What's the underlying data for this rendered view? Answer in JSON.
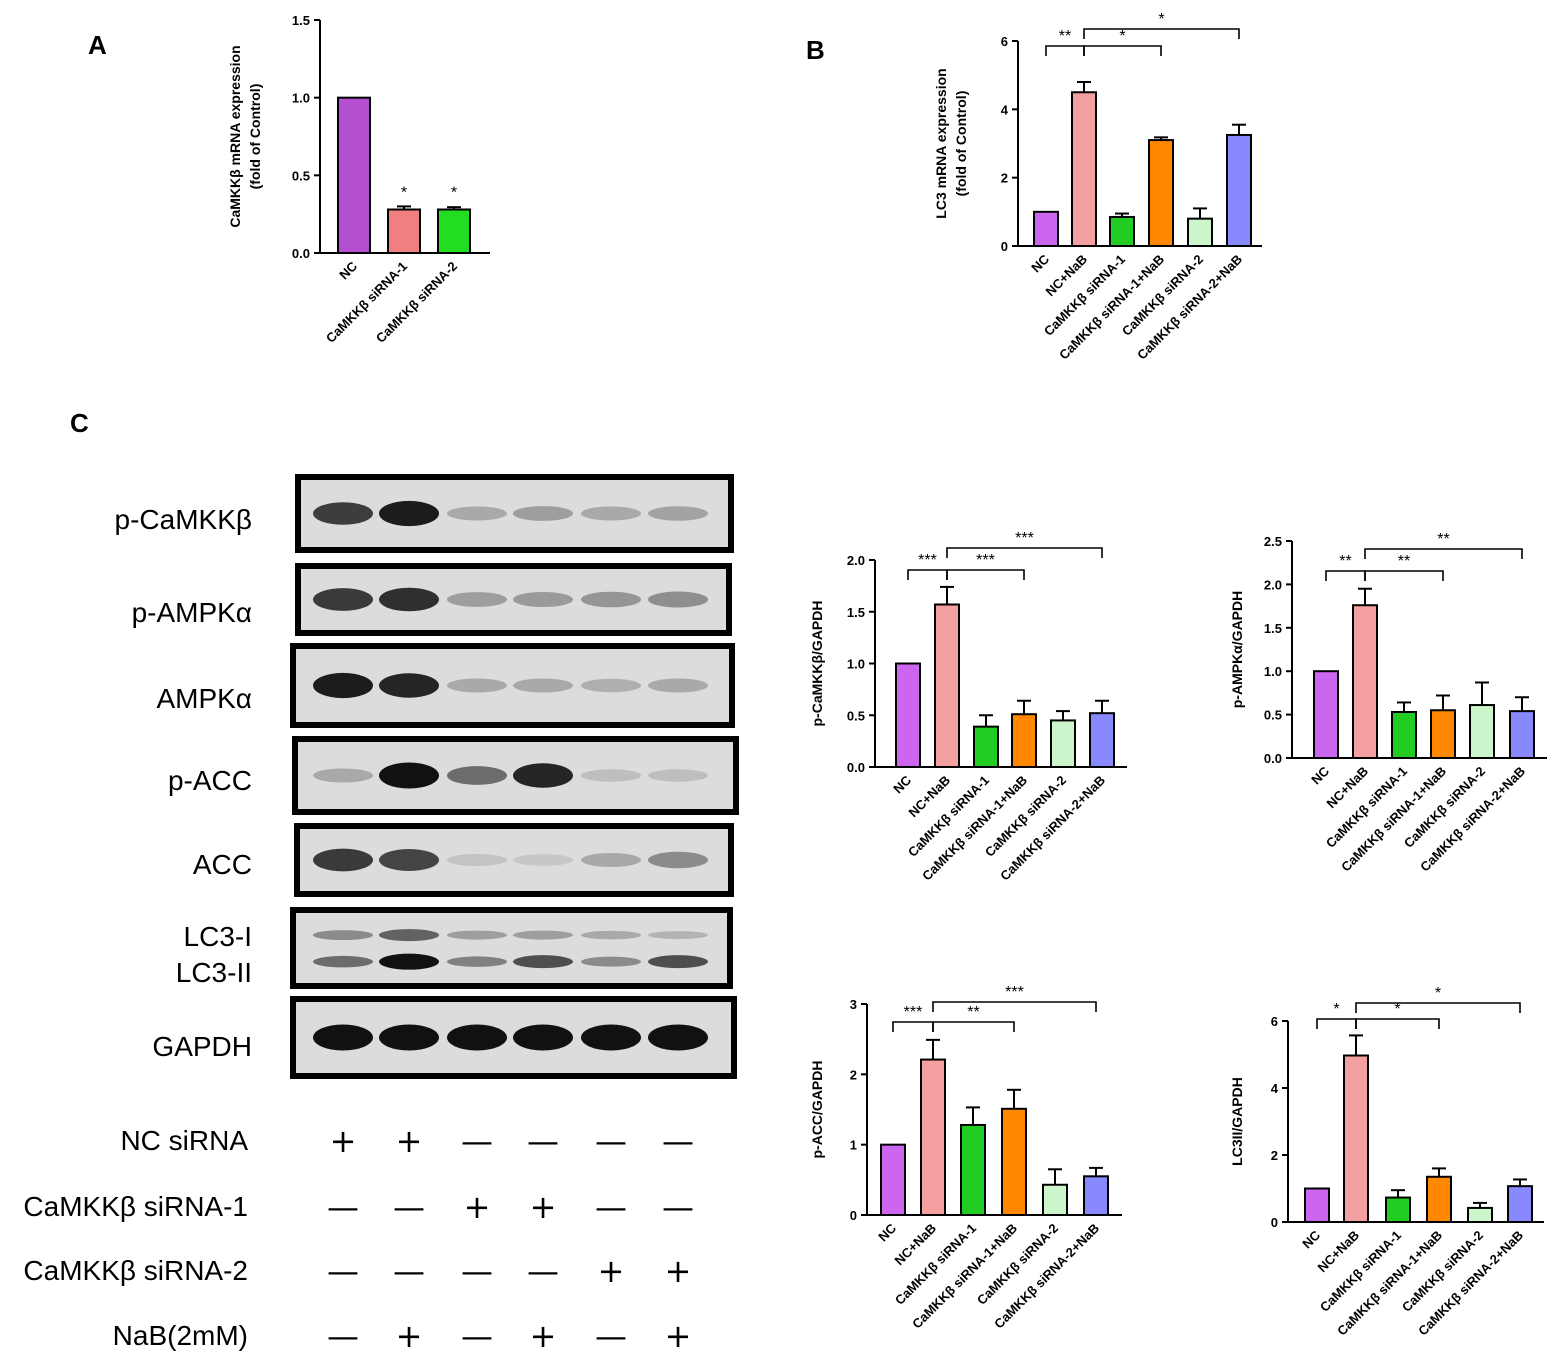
{
  "panels": {
    "a": "A",
    "b": "B",
    "c": "C"
  },
  "chart_data": [
    {
      "id": "A",
      "type": "bar",
      "ylabel": [
        "CaMKKβ mRNA expression",
        "(fold of Control)"
      ],
      "yticks": [
        "0.0",
        "0.5",
        "1.0",
        "1.5"
      ],
      "ylim": [
        0,
        1.5
      ],
      "categories": [
        "NC",
        "CaMKKβ siRNA-1",
        "CaMKKβ siRNA-2"
      ],
      "values": [
        1.0,
        0.28,
        0.28
      ],
      "errors": [
        0,
        0.02,
        0.015
      ],
      "colors": [
        "#b44fd1",
        "#f08080",
        "#22dd22"
      ],
      "annotations": [
        "",
        "*",
        "*"
      ],
      "brackets": []
    },
    {
      "id": "B",
      "type": "bar",
      "ylabel": [
        "LC3 mRNA expression",
        "(fold of Control)"
      ],
      "yticks": [
        "0",
        "2",
        "4",
        "6"
      ],
      "ylim": [
        0,
        6
      ],
      "categories": [
        "NC",
        "NC+NaB",
        "CaMKKβ siRNA-1",
        "CaMKKβ siRNA-1+NaB",
        "CaMKKβ siRNA-2",
        "CaMKKβ siRNA-2+NaB"
      ],
      "values": [
        1.0,
        4.5,
        0.85,
        3.1,
        0.8,
        3.25
      ],
      "errors": [
        0,
        0.3,
        0.1,
        0.08,
        0.3,
        0.3
      ],
      "colors": [
        "#cc66ee",
        "#f4a0a0",
        "#22cc22",
        "#ff8800",
        "#ccf5cc",
        "#8888ff"
      ],
      "annotations": [],
      "brackets": [
        {
          "from": 0,
          "to": 1,
          "label": "**",
          "level": 0
        },
        {
          "from": 1,
          "to": 3,
          "label": "*",
          "level": 0
        },
        {
          "from": 1,
          "to": 5,
          "label": "*",
          "level": 1
        }
      ]
    },
    {
      "id": "C1",
      "type": "bar",
      "ylabel": [
        "p-CaMKKβ/GAPDH"
      ],
      "yticks": [
        "0.0",
        "0.5",
        "1.0",
        "1.5",
        "2.0"
      ],
      "ylim": [
        0,
        2.0
      ],
      "categories": [
        "NC",
        "NC+NaB",
        "CaMKKβ siRNA-1",
        "CaMKKβ siRNA-1+NaB",
        "CaMKKβ siRNA-2",
        "CaMKKβ siRNA-2+NaB"
      ],
      "values": [
        1.0,
        1.57,
        0.39,
        0.51,
        0.45,
        0.52
      ],
      "errors": [
        0,
        0.17,
        0.11,
        0.13,
        0.09,
        0.12
      ],
      "colors": [
        "#cc66ee",
        "#f4a0a0",
        "#22cc22",
        "#ff8800",
        "#ccf5cc",
        "#8888ff"
      ],
      "annotations": [],
      "brackets": [
        {
          "from": 0,
          "to": 1,
          "label": "***",
          "level": 0
        },
        {
          "from": 1,
          "to": 3,
          "label": "***",
          "level": 0
        },
        {
          "from": 1,
          "to": 5,
          "label": "***",
          "level": 1
        }
      ]
    },
    {
      "id": "C2",
      "type": "bar",
      "ylabel": [
        "p-AMPKα/GAPDH"
      ],
      "yticks": [
        "0.0",
        "0.5",
        "1.0",
        "1.5",
        "2.0",
        "2.5"
      ],
      "ylim": [
        0,
        2.5
      ],
      "categories": [
        "NC",
        "NC+NaB",
        "CaMKKβ siRNA-1",
        "CaMKKβ siRNA-1+NaB",
        "CaMKKβ siRNA-2",
        "CaMKKβ siRNA-2+NaB"
      ],
      "values": [
        1.0,
        1.76,
        0.53,
        0.55,
        0.61,
        0.54
      ],
      "errors": [
        0,
        0.19,
        0.11,
        0.17,
        0.26,
        0.16
      ],
      "colors": [
        "#cc66ee",
        "#f4a0a0",
        "#22cc22",
        "#ff8800",
        "#ccf5cc",
        "#8888ff"
      ],
      "annotations": [],
      "brackets": [
        {
          "from": 0,
          "to": 1,
          "label": "**",
          "level": 0
        },
        {
          "from": 1,
          "to": 3,
          "label": "**",
          "level": 0
        },
        {
          "from": 1,
          "to": 5,
          "label": "**",
          "level": 1
        }
      ]
    },
    {
      "id": "C3",
      "type": "bar",
      "ylabel": [
        "p-ACC/GAPDH"
      ],
      "yticks": [
        "0",
        "1",
        "2",
        "3"
      ],
      "ylim": [
        0,
        3
      ],
      "categories": [
        "NC",
        "NC+NaB",
        "CaMKKβ siRNA-1",
        "CaMKKβ siRNA-1+NaB",
        "CaMKKβ siRNA-2",
        "CaMKKβ siRNA-2+NaB"
      ],
      "values": [
        1.0,
        2.21,
        1.28,
        1.51,
        0.43,
        0.55
      ],
      "errors": [
        0,
        0.28,
        0.25,
        0.27,
        0.22,
        0.12
      ],
      "colors": [
        "#cc66ee",
        "#f4a0a0",
        "#22cc22",
        "#ff8800",
        "#ccf5cc",
        "#8888ff"
      ],
      "annotations": [],
      "brackets": [
        {
          "from": 0,
          "to": 1,
          "label": "***",
          "level": 0
        },
        {
          "from": 1,
          "to": 3,
          "label": "**",
          "level": 0
        },
        {
          "from": 1,
          "to": 5,
          "label": "***",
          "level": 1
        }
      ]
    },
    {
      "id": "C4",
      "type": "bar",
      "ylabel": [
        "LC3II/GAPDH"
      ],
      "yticks": [
        "0",
        "2",
        "4",
        "6"
      ],
      "ylim": [
        0,
        6
      ],
      "categories": [
        "NC",
        "NC+NaB",
        "CaMKKβ siRNA-1",
        "CaMKKβ siRNA-1+NaB",
        "CaMKKβ siRNA-2",
        "CaMKKβ siRNA-2+NaB"
      ],
      "values": [
        1.0,
        4.97,
        0.73,
        1.35,
        0.42,
        1.07
      ],
      "errors": [
        0,
        0.6,
        0.22,
        0.25,
        0.15,
        0.2
      ],
      "colors": [
        "#cc66ee",
        "#f4a0a0",
        "#22cc22",
        "#ff8800",
        "#ccf5cc",
        "#8888ff"
      ],
      "annotations": [],
      "brackets": [
        {
          "from": 0,
          "to": 1,
          "label": "*",
          "level": 0
        },
        {
          "from": 1,
          "to": 3,
          "label": "*",
          "level": 0
        },
        {
          "from": 1,
          "to": 5,
          "label": "*",
          "level": 1
        }
      ]
    }
  ],
  "blots": [
    {
      "label": "p-CaMKKβ",
      "bands": [
        [
          0.78,
          0.95,
          0.25,
          0.3,
          0.25,
          0.28
        ]
      ]
    },
    {
      "label": "p-AMPKα",
      "bands": [
        [
          0.8,
          0.85,
          0.3,
          0.32,
          0.35,
          0.38
        ]
      ]
    },
    {
      "label": "AMPKα",
      "bands": [
        [
          0.95,
          0.9,
          0.25,
          0.25,
          0.22,
          0.25
        ]
      ]
    },
    {
      "label": "p-ACC",
      "bands": [
        [
          0.25,
          1.0,
          0.55,
          0.9,
          0.15,
          0.15
        ]
      ]
    },
    {
      "label": "ACC",
      "bands": [
        [
          0.8,
          0.75,
          0.12,
          0.1,
          0.25,
          0.4
        ]
      ]
    },
    {
      "label": "LC3-I\nLC3-II",
      "bands": [
        [
          0.4,
          0.6,
          0.3,
          0.3,
          0.25,
          0.2
        ],
        [
          0.55,
          1.0,
          0.45,
          0.7,
          0.4,
          0.7
        ]
      ]
    },
    {
      "label": "GAPDH",
      "bands": [
        [
          1.0,
          1.0,
          1.0,
          1.0,
          1.0,
          1.0
        ]
      ]
    }
  ],
  "conditions": [
    {
      "label": "NC siRNA",
      "signs": [
        "+",
        "+",
        "—",
        "—",
        "—",
        "—"
      ]
    },
    {
      "label": "CaMKKβ siRNA-1",
      "signs": [
        "—",
        "—",
        "+",
        "+",
        "—",
        "—"
      ]
    },
    {
      "label": "CaMKKβ siRNA-2",
      "signs": [
        "—",
        "—",
        "—",
        "—",
        "+",
        "+"
      ]
    },
    {
      "label": "NaB(2mM)",
      "signs": [
        "—",
        "+",
        "—",
        "+",
        "—",
        "+"
      ]
    }
  ]
}
